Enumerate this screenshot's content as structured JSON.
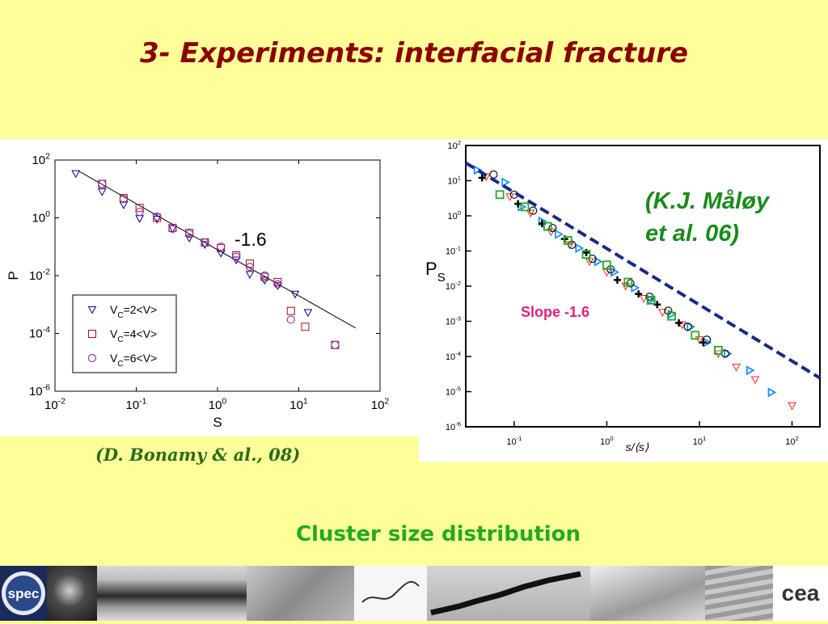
{
  "slide": {
    "title": "3- Experiments: interfacial fracture",
    "caption": "Cluster size distribution",
    "citation_left": "(D. Bonamy & al., 08)",
    "citation_right_line1": "(K.J. Måløy",
    "citation_right_line2": "et al. 06)",
    "colors": {
      "title": "#8b0000",
      "caption": "#22aa22",
      "citation_right": "#1a8a1a",
      "slope_label": "#e0207a",
      "background": "#ffff99"
    },
    "logos": {
      "left": "spec",
      "right": "cea"
    }
  },
  "chart_data": [
    {
      "type": "scatter",
      "title": "",
      "xlabel": "S",
      "ylabel": "P",
      "xscale": "log",
      "yscale": "log",
      "xlim": [
        0.01,
        100
      ],
      "ylim": [
        1e-06,
        100
      ],
      "xticks": [
        {
          "base": "10",
          "exp": "-2"
        },
        {
          "base": "10",
          "exp": "-1"
        },
        {
          "base": "10",
          "exp": "0"
        },
        {
          "base": "10",
          "exp": "1"
        },
        {
          "base": "10",
          "exp": "2"
        }
      ],
      "yticks": [
        {
          "base": "10",
          "exp": "2"
        },
        {
          "base": "10",
          "exp": "0"
        },
        {
          "base": "10",
          "exp": "-2"
        },
        {
          "base": "10",
          "exp": "-4"
        },
        {
          "base": "10",
          "exp": "-6"
        }
      ],
      "annotation": "-1.6",
      "fit_line": {
        "slope": -1.6,
        "x": [
          0.02,
          50
        ],
        "y": [
          40,
          0.000154
        ]
      },
      "legend_position": "bottom-left",
      "series": [
        {
          "name": "V_C=2<V>",
          "label_main": "V",
          "label_sub": "C",
          "label_rest": "=2<V>",
          "marker": "triangle-down",
          "color": "#00008b",
          "x": [
            0.018,
            0.038,
            0.07,
            0.11,
            0.18,
            0.28,
            0.45,
            0.7,
            1.1,
            1.7,
            2.5,
            3.8,
            5.5,
            9,
            13
          ],
          "y": [
            34,
            8,
            2.8,
            0.95,
            0.9,
            0.42,
            0.2,
            0.12,
            0.06,
            0.035,
            0.011,
            0.007,
            0.0045,
            0.0023,
            0.00053
          ]
        },
        {
          "name": "V_C=4<V>",
          "label_main": "V",
          "label_sub": "C",
          "label_rest": "=4<V>",
          "marker": "square",
          "color": "#a01010",
          "x": [
            0.038,
            0.07,
            0.11,
            0.18,
            0.28,
            0.45,
            0.7,
            1.1,
            1.7,
            2.5,
            3.8,
            5.5,
            8,
            12,
            28
          ],
          "y": [
            15,
            4.8,
            2.2,
            1.0,
            0.45,
            0.3,
            0.14,
            0.09,
            0.05,
            0.026,
            0.009,
            0.006,
            0.0006,
            0.00017,
            4e-05
          ]
        },
        {
          "name": "V_C=6<V>",
          "label_main": "V",
          "label_sub": "C",
          "label_rest": "=6<V>",
          "marker": "circle",
          "color": "#9933aa",
          "x": [
            0.038,
            0.07,
            0.11,
            0.18,
            0.28,
            0.45,
            0.7,
            1.1,
            1.7,
            2.5,
            3.8,
            5.5,
            8,
            28
          ],
          "y": [
            15,
            4.5,
            1.6,
            1.1,
            0.42,
            0.28,
            0.14,
            0.1,
            0.045,
            0.02,
            0.01,
            0.005,
            0.0003,
            4e-05
          ]
        }
      ]
    },
    {
      "type": "scatter",
      "title": "",
      "xlabel": "s/⟨s⟩",
      "ylabel_main": "P",
      "ylabel_sub": "S",
      "xscale": "log",
      "yscale": "log",
      "xlim": [
        0.03,
        200
      ],
      "ylim": [
        1e-06,
        100
      ],
      "xticks": [
        {
          "base": "10",
          "exp": "-1"
        },
        {
          "base": "10",
          "exp": "0"
        },
        {
          "base": "10",
          "exp": "1"
        },
        {
          "base": "10",
          "exp": "2"
        }
      ],
      "yticks": [
        {
          "base": "10",
          "exp": "2"
        },
        {
          "base": "10",
          "exp": "1"
        },
        {
          "base": "10",
          "exp": "0"
        },
        {
          "base": "10",
          "exp": "-1"
        },
        {
          "base": "10",
          "exp": "-2"
        },
        {
          "base": "10",
          "exp": "-3"
        },
        {
          "base": "10",
          "exp": "-4"
        },
        {
          "base": "10",
          "exp": "-5"
        },
        {
          "base": "10",
          "exp": "-6"
        }
      ],
      "annotation": "Slope -1.6",
      "fit_line": {
        "slope": -1.6,
        "x": [
          0.03,
          200
        ],
        "y": [
          32,
          2.44e-05
        ]
      },
      "series": [
        {
          "marker": "triangle-right",
          "color": "#1e90ff",
          "x": [
            0.04,
            0.08,
            0.12,
            0.2,
            0.3,
            0.5,
            0.8,
            1.2,
            2,
            3,
            5,
            8,
            12,
            20,
            35,
            60
          ],
          "y": [
            20,
            9,
            1.8,
            0.7,
            0.3,
            0.12,
            0.05,
            0.025,
            0.009,
            0.004,
            0.0016,
            0.0007,
            0.00025,
            0.00012,
            4e-05,
            9.5e-06
          ]
        },
        {
          "marker": "triangle-down",
          "color": "#ff2020",
          "x": [
            0.05,
            0.09,
            0.15,
            0.25,
            0.4,
            0.65,
            1,
            1.6,
            2.5,
            4,
            6.5,
            10,
            16,
            25,
            40,
            100
          ],
          "y": [
            13,
            3.5,
            1.2,
            0.35,
            0.15,
            0.05,
            0.025,
            0.01,
            0.0045,
            0.0018,
            0.0008,
            0.0003,
            0.00012,
            5e-05,
            2.2e-05,
            4e-06
          ]
        },
        {
          "marker": "circle",
          "color": "#111111",
          "x": [
            0.06,
            0.1,
            0.16,
            0.26,
            0.42,
            0.7,
            1.1,
            1.8,
            2.9,
            4.6,
            7.5,
            12,
            19
          ],
          "y": [
            15,
            4,
            1.4,
            0.45,
            0.15,
            0.06,
            0.03,
            0.012,
            0.005,
            0.002,
            0.0007,
            0.0003,
            0.00012
          ]
        },
        {
          "marker": "cross",
          "color": "#000000",
          "x": [
            0.045,
            0.11,
            0.2,
            0.35,
            0.6,
            1.3,
            2.2,
            3.5,
            6,
            11
          ],
          "y": [
            12,
            2.2,
            0.6,
            0.22,
            0.09,
            0.015,
            0.006,
            0.003,
            0.0009,
            0.00025
          ]
        },
        {
          "marker": "square-open",
          "color": "#22aa22",
          "x": [
            0.07,
            0.13,
            0.23,
            0.38,
            0.6,
            1,
            1.7,
            3,
            5,
            9,
            16
          ],
          "y": [
            4,
            1.8,
            0.5,
            0.2,
            0.08,
            0.04,
            0.013,
            0.004,
            0.0014,
            0.0004,
            0.00015
          ]
        }
      ]
    }
  ]
}
